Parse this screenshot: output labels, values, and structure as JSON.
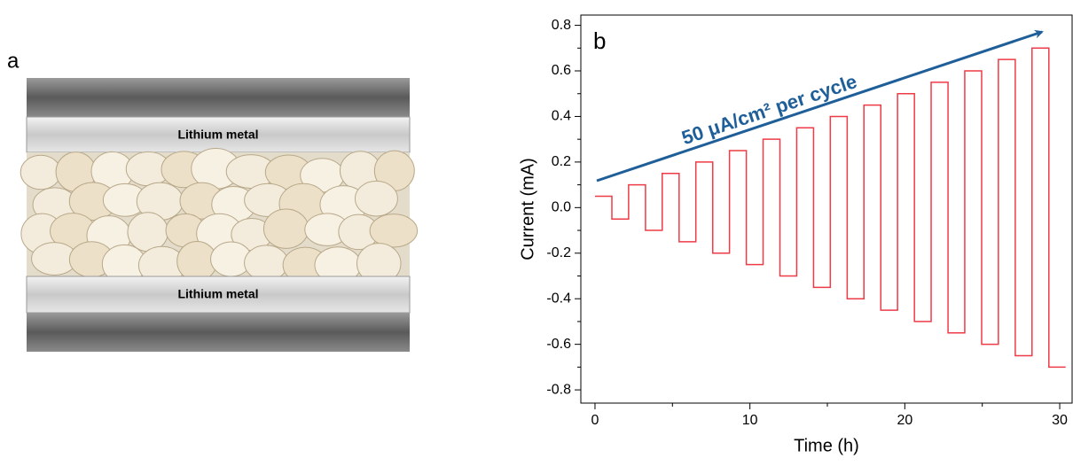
{
  "panel_a": {
    "label": "a",
    "top_label": "Lithium metal",
    "bottom_label": "Lithium metal"
  },
  "chart_data": {
    "type": "line",
    "panel_label": "b",
    "annotation": "50 μA/cm² per cycle",
    "xlabel": "Time (h)",
    "ylabel": "Current (mA)",
    "xlim": [
      -0.914,
      30.8
    ],
    "ylim": [
      -0.858,
      0.845
    ],
    "xticks": [
      0,
      10,
      20,
      30
    ],
    "xminor_ticks": [
      5,
      15,
      25
    ],
    "yticks": [
      -0.8,
      -0.6,
      -0.4,
      -0.2,
      {
        "value": 0,
        "label": "0.0"
      },
      0.2,
      0.4,
      0.6,
      0.8
    ],
    "yminor_ticks": [
      -0.7,
      -0.5,
      -0.3,
      -0.1,
      0.1,
      0.3,
      0.5,
      0.7
    ],
    "series": [
      {
        "color": "#ee3b47",
        "x": [
          0,
          1.09,
          1.09,
          2.17,
          2.17,
          3.26,
          3.26,
          4.34,
          4.34,
          5.43,
          5.43,
          6.51,
          6.51,
          7.6,
          7.6,
          8.68,
          8.68,
          9.77,
          9.77,
          10.85,
          10.85,
          11.94,
          11.94,
          13.02,
          13.02,
          14.11,
          14.11,
          15.19,
          15.19,
          16.28,
          16.28,
          17.36,
          17.36,
          18.45,
          18.45,
          19.53,
          19.53,
          20.62,
          20.62,
          21.7,
          21.7,
          22.79,
          22.79,
          23.87,
          23.87,
          24.96,
          24.96,
          26.04,
          26.04,
          27.13,
          27.13,
          28.21,
          28.21,
          29.3,
          29.3,
          30.38
        ],
        "values": [
          0.05,
          0.05,
          -0.05,
          -0.05,
          0.1,
          0.1,
          -0.1,
          -0.1,
          0.15,
          0.15,
          -0.15,
          -0.15,
          0.2,
          0.2,
          -0.2,
          -0.2,
          0.25,
          0.25,
          -0.25,
          -0.25,
          0.3,
          0.3,
          -0.3,
          -0.3,
          0.35,
          0.35,
          -0.35,
          -0.35,
          0.4,
          0.4,
          -0.4,
          -0.4,
          0.45,
          0.45,
          -0.45,
          -0.45,
          0.5,
          0.5,
          -0.5,
          -0.5,
          0.55,
          0.55,
          -0.55,
          -0.55,
          0.6,
          0.6,
          -0.6,
          -0.6,
          0.65,
          0.65,
          -0.65,
          -0.65,
          0.7,
          0.7,
          -0.7,
          -0.7
        ]
      }
    ]
  }
}
